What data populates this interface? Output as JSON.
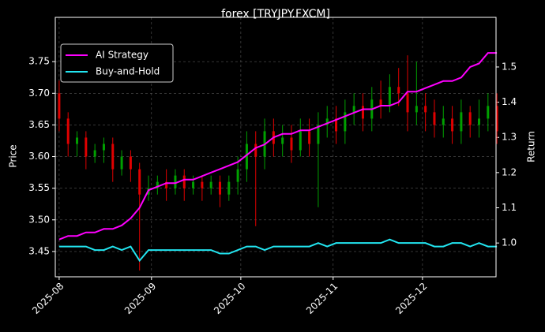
{
  "chart_data": {
    "type": "candlestick",
    "title": "forex [TRYJPY.FXCM]",
    "ylabel": "Price",
    "y2label": "Return",
    "x": [
      0,
      3,
      6,
      9,
      12,
      15,
      18,
      21,
      24,
      27,
      30,
      33,
      36,
      39,
      42,
      45,
      48,
      51,
      54,
      57,
      60,
      63,
      66,
      69,
      72,
      75,
      78,
      81,
      84,
      87,
      90,
      93,
      96,
      99,
      102,
      105,
      108,
      111,
      114,
      117,
      120,
      123,
      126,
      129,
      132,
      135,
      138,
      141,
      144,
      147
    ],
    "open": [
      3.7,
      3.66,
      3.62,
      3.63,
      3.6,
      3.61,
      3.62,
      3.58,
      3.6,
      3.58,
      3.54,
      3.55,
      3.56,
      3.55,
      3.57,
      3.55,
      3.56,
      3.55,
      3.56,
      3.54,
      3.56,
      3.58,
      3.62,
      3.6,
      3.64,
      3.62,
      3.63,
      3.61,
      3.64,
      3.62,
      3.65,
      3.66,
      3.64,
      3.67,
      3.68,
      3.66,
      3.69,
      3.68,
      3.71,
      3.7,
      3.67,
      3.68,
      3.67,
      3.65,
      3.66,
      3.64,
      3.67,
      3.65,
      3.66,
      3.68
    ],
    "high": [
      3.72,
      3.67,
      3.64,
      3.64,
      3.62,
      3.63,
      3.63,
      3.61,
      3.61,
      3.59,
      3.57,
      3.57,
      3.58,
      3.58,
      3.58,
      3.57,
      3.57,
      3.57,
      3.57,
      3.57,
      3.6,
      3.64,
      3.64,
      3.66,
      3.66,
      3.65,
      3.65,
      3.66,
      3.66,
      3.67,
      3.68,
      3.68,
      3.69,
      3.7,
      3.7,
      3.71,
      3.72,
      3.73,
      3.74,
      3.76,
      3.75,
      3.7,
      3.69,
      3.68,
      3.68,
      3.69,
      3.68,
      3.69,
      3.7,
      3.7
    ],
    "low": [
      3.64,
      3.6,
      3.6,
      3.58,
      3.59,
      3.59,
      3.56,
      3.57,
      3.56,
      3.42,
      3.53,
      3.54,
      3.53,
      3.54,
      3.53,
      3.54,
      3.53,
      3.54,
      3.52,
      3.53,
      3.54,
      3.56,
      3.49,
      3.58,
      3.6,
      3.6,
      3.59,
      3.6,
      3.6,
      3.52,
      3.63,
      3.62,
      3.62,
      3.65,
      3.64,
      3.64,
      3.66,
      3.67,
      3.68,
      3.64,
      3.65,
      3.64,
      3.63,
      3.63,
      3.62,
      3.62,
      3.63,
      3.63,
      3.64,
      3.62
    ],
    "close": [
      3.66,
      3.62,
      3.63,
      3.6,
      3.61,
      3.62,
      3.58,
      3.6,
      3.58,
      3.54,
      3.55,
      3.56,
      3.55,
      3.57,
      3.55,
      3.56,
      3.55,
      3.56,
      3.54,
      3.56,
      3.58,
      3.62,
      3.6,
      3.64,
      3.62,
      3.63,
      3.61,
      3.64,
      3.62,
      3.65,
      3.66,
      3.64,
      3.67,
      3.68,
      3.66,
      3.69,
      3.68,
      3.71,
      3.7,
      3.67,
      3.68,
      3.67,
      3.65,
      3.66,
      3.64,
      3.67,
      3.65,
      3.66,
      3.68,
      3.64
    ],
    "up_color": "#00a000",
    "down_color": "#e00000",
    "series": [
      {
        "name": "AI Strategy",
        "color": "#ff00ff",
        "axis": "y2",
        "values": [
          1.01,
          1.02,
          1.02,
          1.03,
          1.03,
          1.04,
          1.04,
          1.05,
          1.07,
          1.1,
          1.15,
          1.16,
          1.17,
          1.17,
          1.18,
          1.18,
          1.19,
          1.2,
          1.21,
          1.22,
          1.23,
          1.25,
          1.27,
          1.28,
          1.3,
          1.31,
          1.31,
          1.32,
          1.32,
          1.33,
          1.34,
          1.35,
          1.36,
          1.37,
          1.38,
          1.38,
          1.39,
          1.39,
          1.4,
          1.43,
          1.43,
          1.44,
          1.45,
          1.46,
          1.46,
          1.47,
          1.5,
          1.51,
          1.54,
          1.54
        ]
      },
      {
        "name": "Buy-and-Hold",
        "color": "#22e5f0",
        "axis": "y2",
        "values": [
          0.99,
          0.99,
          0.99,
          0.99,
          0.98,
          0.98,
          0.99,
          0.98,
          0.99,
          0.95,
          0.98,
          0.98,
          0.98,
          0.98,
          0.98,
          0.98,
          0.98,
          0.98,
          0.97,
          0.97,
          0.98,
          0.99,
          0.99,
          0.98,
          0.99,
          0.99,
          0.99,
          0.99,
          0.99,
          1.0,
          0.99,
          1.0,
          1.0,
          1.0,
          1.0,
          1.0,
          1.0,
          1.01,
          1.0,
          1.0,
          1.0,
          1.0,
          0.99,
          0.99,
          1.0,
          1.0,
          0.99,
          1.0,
          0.99,
          0.99
        ]
      }
    ],
    "xlim": [
      -1.3,
      146.7
    ],
    "xticks": [
      {
        "value": 0,
        "label": "2025-08"
      },
      {
        "value": 31,
        "label": "2025-09"
      },
      {
        "value": 61,
        "label": "2025-10"
      },
      {
        "value": 92,
        "label": "2025-11"
      },
      {
        "value": 122,
        "label": "2025-12"
      }
    ],
    "ylim": [
      3.41,
      3.82
    ],
    "yticks": [
      3.45,
      {
        "value": 3.5,
        "label": "3.50"
      },
      3.55,
      {
        "value": 3.6,
        "label": "3.60"
      },
      3.65,
      {
        "value": 3.7,
        "label": "3.70"
      },
      3.75
    ],
    "y2lim": [
      0.904,
      1.641
    ],
    "y2ticks": [
      {
        "value": 1,
        "label": "1.0"
      },
      1.1,
      1.2,
      1.3,
      1.4,
      1.5
    ],
    "grid": true,
    "legend": "upper left"
  }
}
